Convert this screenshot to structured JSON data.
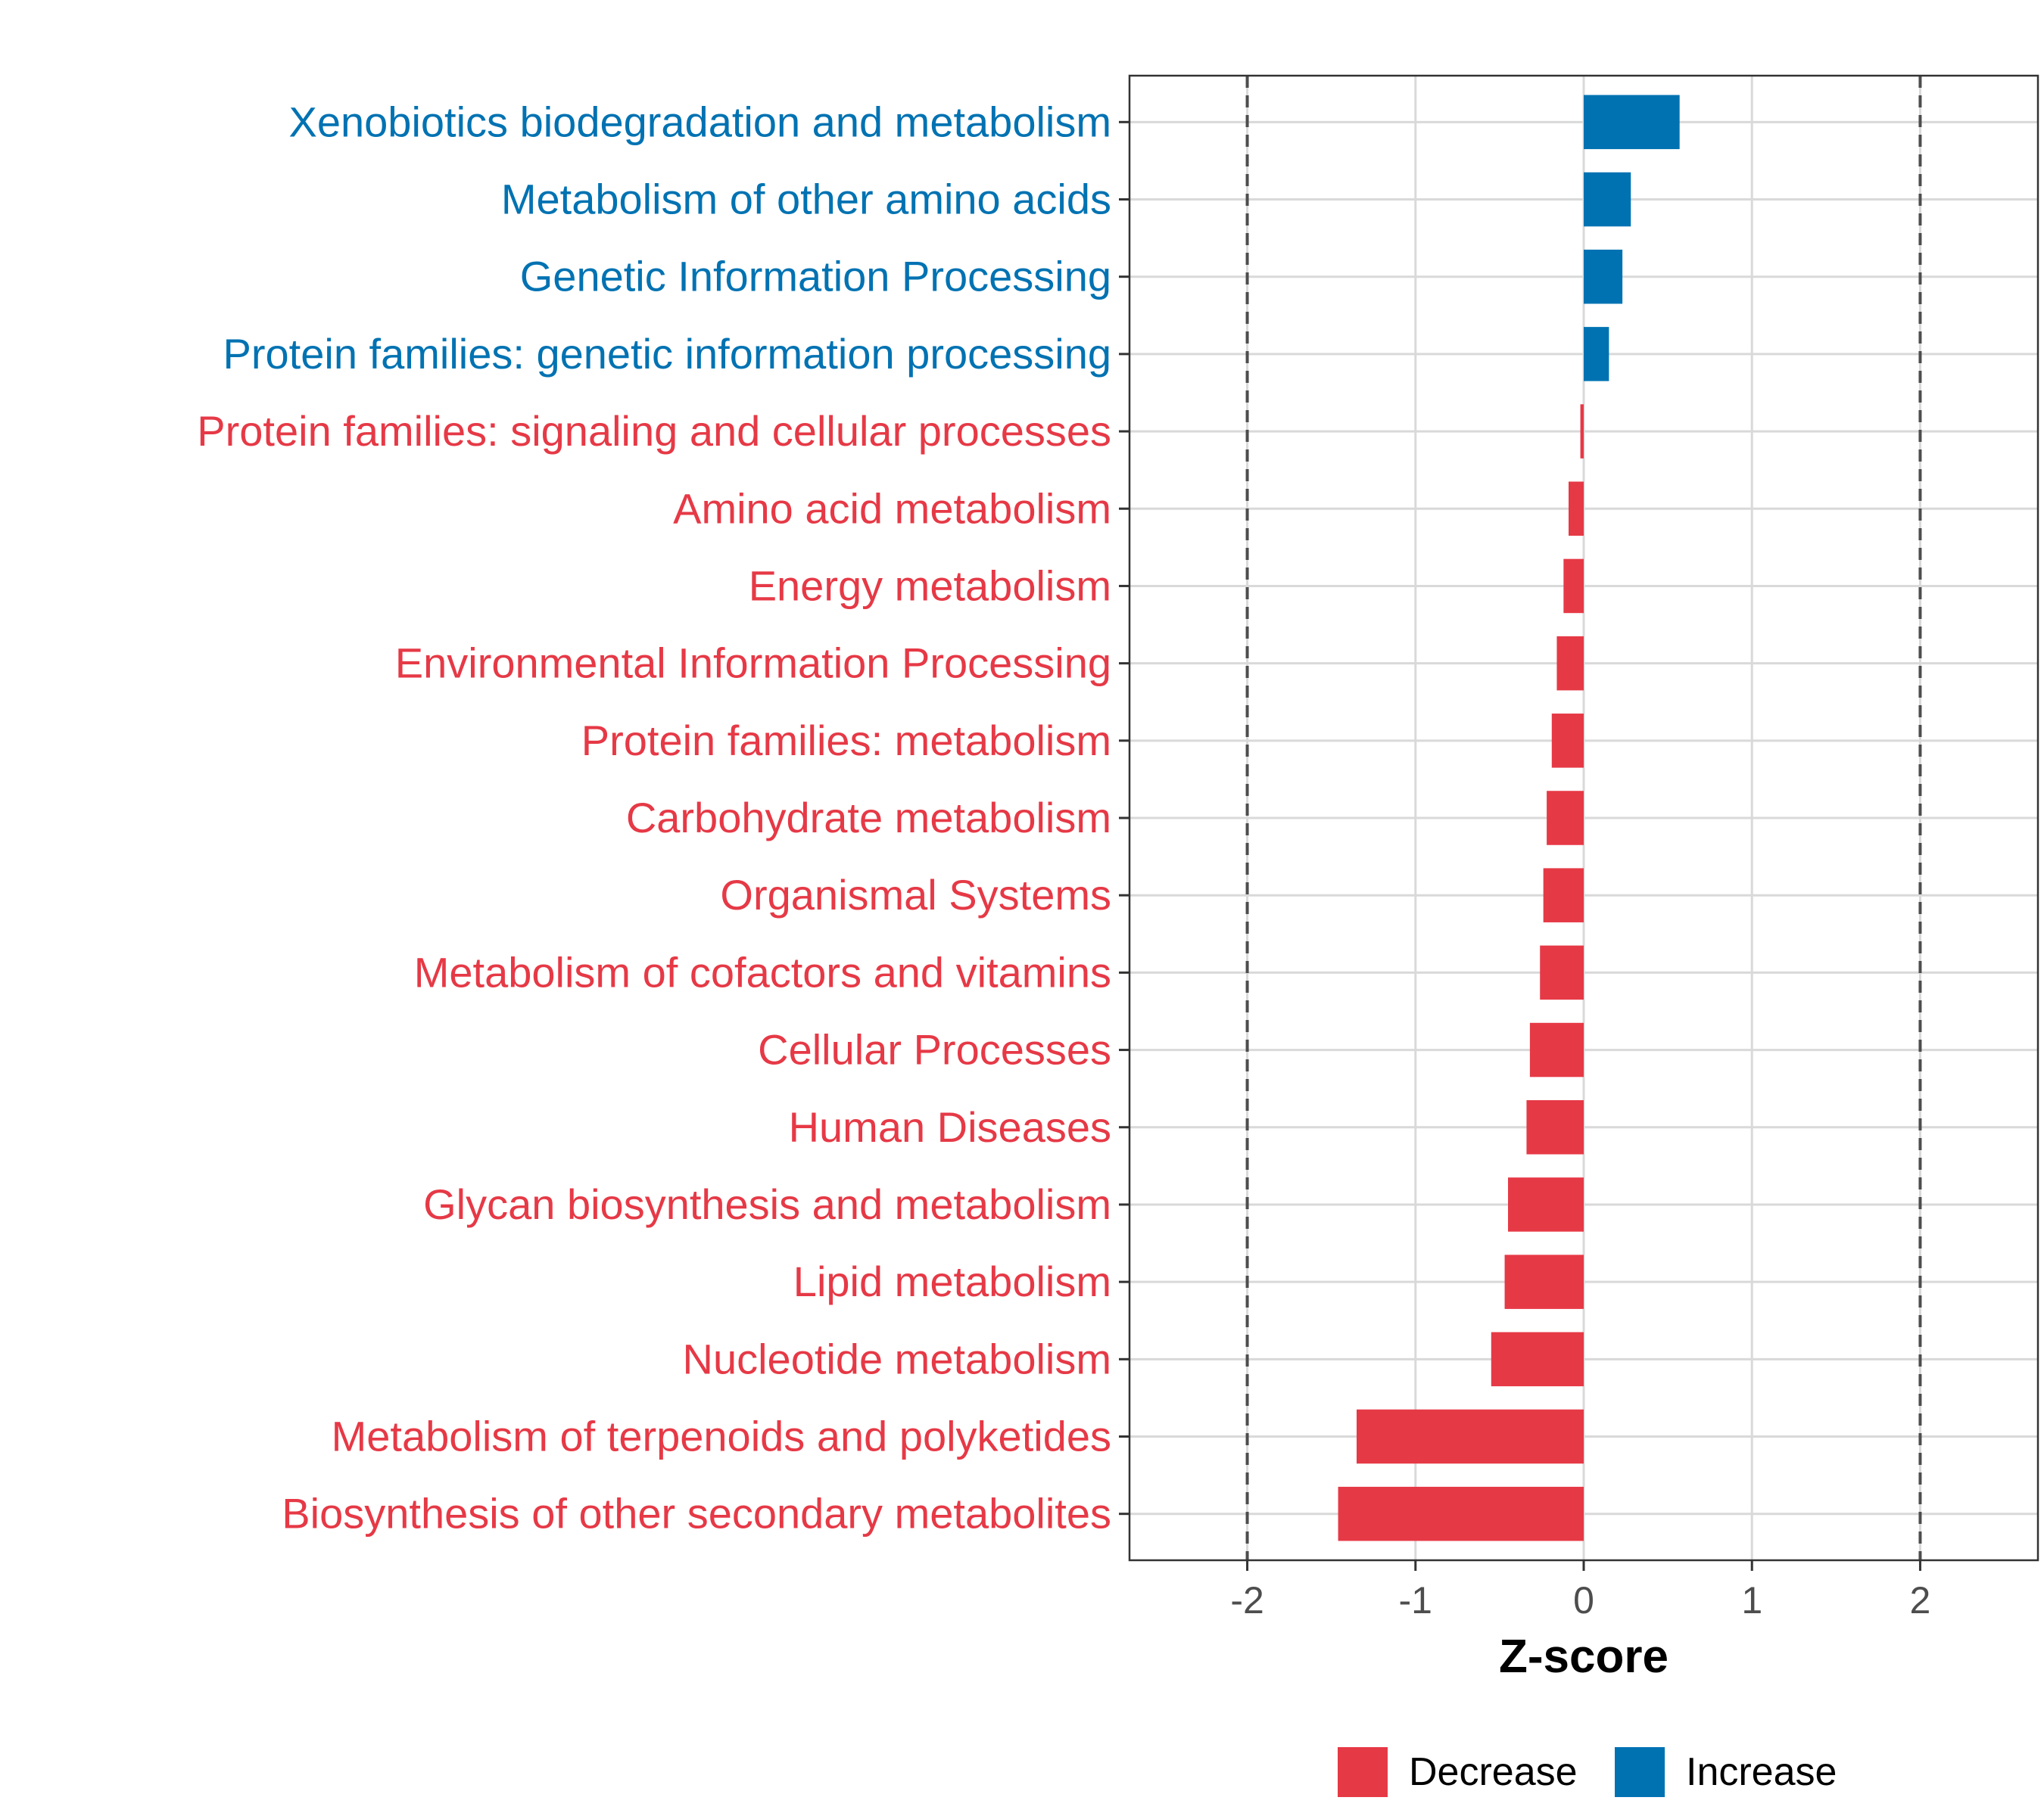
{
  "chart_data": {
    "type": "bar",
    "orientation": "horizontal",
    "title": "",
    "xlabel": "Z-score",
    "ylabel": "",
    "xlim": [
      -2.7,
      2.7
    ],
    "xticks": [
      -2,
      -1,
      0,
      1,
      2
    ],
    "xtick_labels": [
      "-2",
      "-1",
      "0",
      "1",
      "2"
    ],
    "reference_lines": [
      -2,
      2
    ],
    "grid": true,
    "categories": [
      "Xenobiotics biodegradation and metabolism",
      "Metabolism of other amino acids",
      "Genetic Information Processing",
      "Protein families: genetic information processing",
      "Protein families: signaling and cellular processes",
      "Amino acid metabolism",
      "Energy metabolism",
      "Environmental Information Processing",
      "Protein families: metabolism",
      "Carbohydrate metabolism",
      "Organismal Systems",
      "Metabolism of cofactors and vitamins",
      "Cellular Processes",
      "Human Diseases",
      "Glycan biosynthesis and metabolism",
      "Lipid metabolism",
      "Nucleotide metabolism",
      "Metabolism of terpenoids and polyketides",
      "Biosynthesis of other secondary metabolites"
    ],
    "values": [
      0.57,
      0.28,
      0.23,
      0.15,
      -0.02,
      -0.09,
      -0.12,
      -0.16,
      -0.19,
      -0.22,
      -0.24,
      -0.26,
      -0.32,
      -0.34,
      -0.45,
      -0.47,
      -0.55,
      -1.35,
      -1.46
    ],
    "groups": [
      "Increase",
      "Increase",
      "Increase",
      "Increase",
      "Decrease",
      "Decrease",
      "Decrease",
      "Decrease",
      "Decrease",
      "Decrease",
      "Decrease",
      "Decrease",
      "Decrease",
      "Decrease",
      "Decrease",
      "Decrease",
      "Decrease",
      "Decrease",
      "Decrease"
    ],
    "legend": {
      "position": "bottom",
      "entries": [
        {
          "label": "Decrease",
          "color": "#E63946"
        },
        {
          "label": "Increase",
          "color": "#0072B2"
        }
      ]
    },
    "colors": {
      "Decrease": "#E63946",
      "Increase": "#0072B2"
    }
  }
}
